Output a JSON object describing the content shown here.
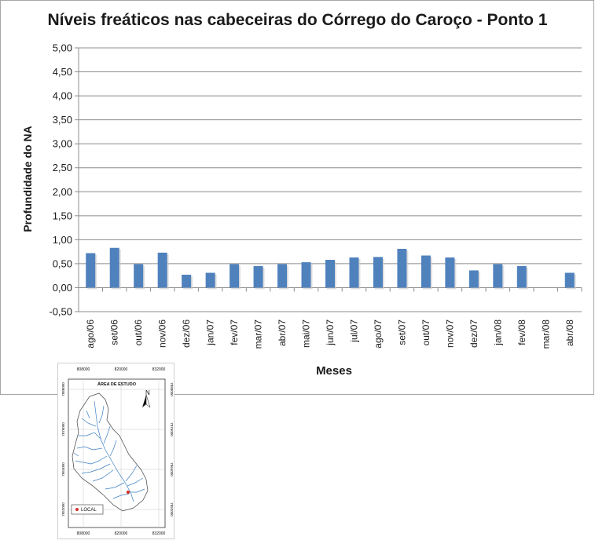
{
  "chart_data": {
    "type": "bar",
    "title": "Níveis freáticos nas cabeceiras do Córrego do Caroço - Ponto 1",
    "xlabel": "Meses",
    "ylabel": "Profundidade do NA",
    "categories": [
      "ago/06",
      "set/06",
      "out/06",
      "nov/06",
      "dez/06",
      "jan/07",
      "fev/07",
      "mar/07",
      "abr/07",
      "mai/07",
      "jun/07",
      "jul/07",
      "ago/07",
      "set/07",
      "out/07",
      "nov/07",
      "dez/07",
      "jan/08",
      "fev/08",
      "mar/08",
      "abr/08"
    ],
    "values": [
      0.72,
      0.83,
      0.49,
      0.73,
      0.27,
      0.31,
      0.49,
      0.45,
      0.49,
      0.53,
      0.58,
      0.63,
      0.64,
      0.81,
      0.67,
      0.63,
      0.36,
      0.49,
      0.45,
      null,
      0.31
    ],
    "ylim": [
      -0.5,
      5.0
    ],
    "yticks": [
      "-0,50",
      "0,00",
      "0,50",
      "1,00",
      "1,50",
      "2,00",
      "2,50",
      "3,00",
      "3,50",
      "4,00",
      "4,50",
      "5,00"
    ],
    "grid": true,
    "legend": "none",
    "bar_color": "#4f81bd"
  },
  "inset_map": {
    "title": "ÁREA DE ESTUDO",
    "top_ticks": [
      "808000",
      "820000",
      "832000"
    ],
    "bottom_ticks": [
      "808000",
      "820000",
      "832000"
    ],
    "left_ticks": [
      "7888000",
      "7876000",
      "7864000",
      "7852000"
    ],
    "right_ticks": [
      "7888000",
      "7876000",
      "7864000",
      "7852000"
    ],
    "north_label": "N",
    "legend_label": "LOCAL",
    "stream_color": "#3a7fc1",
    "point_color": "#d0342c"
  }
}
